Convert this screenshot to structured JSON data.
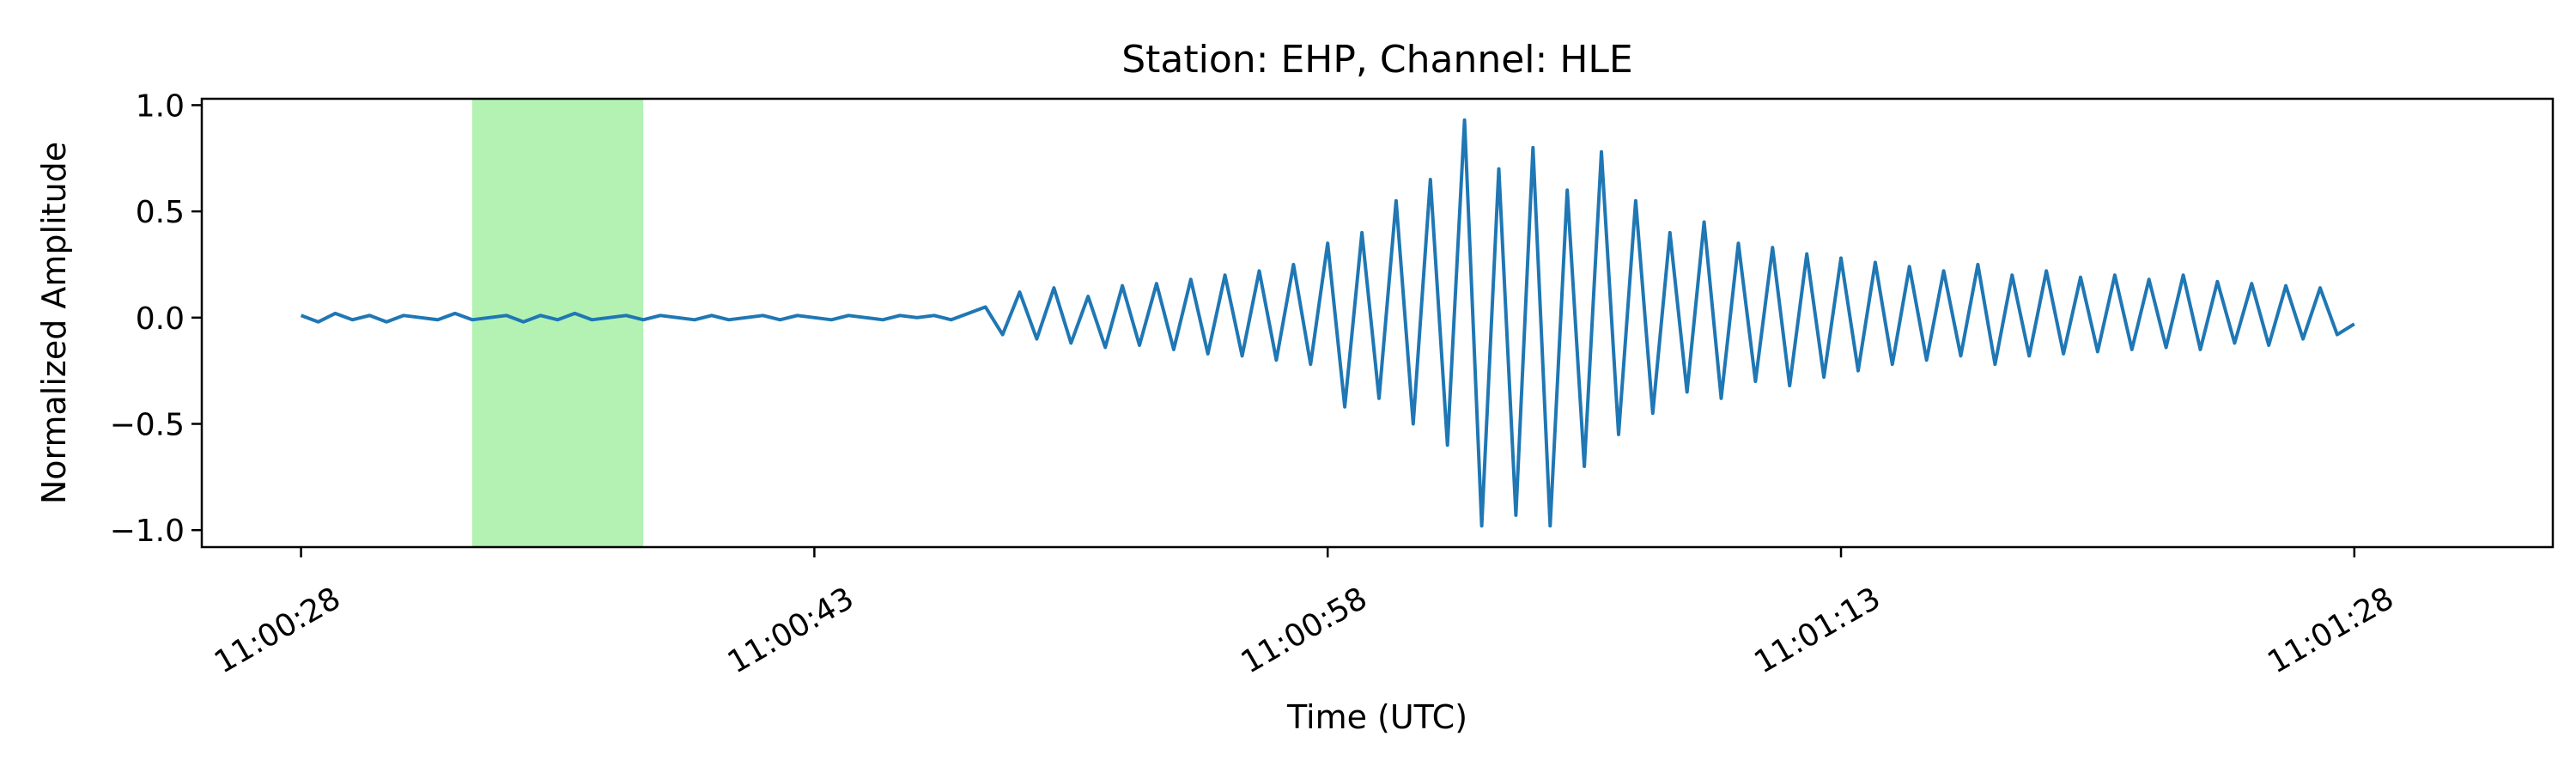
{
  "chart_data": {
    "type": "line",
    "title": "Station: EHP, Channel: HLE",
    "xlabel": "Time (UTC)",
    "ylabel": "Normalized Amplitude",
    "x_unit": "seconds",
    "xlim": [
      -2.9,
      65.8
    ],
    "ylim": [
      -1.08,
      1.03
    ],
    "xticks": [
      {
        "value": 0,
        "label": "11:00:28"
      },
      {
        "value": 15,
        "label": "11:00:43"
      },
      {
        "value": 30,
        "label": "11:00:58"
      },
      {
        "value": 45,
        "label": "11:01:13"
      },
      {
        "value": 60,
        "label": "11:01:28"
      }
    ],
    "yticks": [
      {
        "value": 1.0,
        "label": "1.0"
      },
      {
        "value": 0.5,
        "label": "0.5"
      },
      {
        "value": 0.0,
        "label": "0.0"
      },
      {
        "value": -0.5,
        "label": "−0.5"
      },
      {
        "value": -1.0,
        "label": "−1.0"
      }
    ],
    "highlight_span": {
      "x_start": 5.0,
      "x_end": 10.0,
      "color": "#b3f2b3"
    },
    "series": [
      {
        "color": "#1f77b4",
        "x": [
          0.0,
          0.5,
          1.0,
          1.5,
          2.0,
          2.5,
          3.0,
          3.5,
          4.0,
          4.5,
          5.0,
          5.5,
          6.0,
          6.5,
          7.0,
          7.5,
          8.0,
          8.5,
          9.0,
          9.5,
          10.0,
          10.5,
          11.0,
          11.5,
          12.0,
          12.5,
          13.0,
          13.5,
          14.0,
          14.5,
          15.0,
          15.5,
          16.0,
          16.5,
          17.0,
          17.5,
          18.0,
          18.5,
          19.0,
          19.5,
          20.0,
          20.5,
          21.0,
          21.5,
          22.0,
          22.5,
          23.0,
          23.5,
          24.0,
          24.5,
          25.0,
          25.5,
          26.0,
          26.5,
          27.0,
          27.5,
          28.0,
          28.5,
          29.0,
          29.5,
          30.0,
          30.5,
          31.0,
          31.5,
          32.0,
          32.5,
          33.0,
          33.5,
          34.0,
          34.5,
          35.0,
          35.5,
          36.0,
          36.5,
          37.0,
          37.5,
          38.0,
          38.5,
          39.0,
          39.5,
          40.0,
          40.5,
          41.0,
          41.5,
          42.0,
          42.5,
          43.0,
          43.5,
          44.0,
          44.5,
          45.0,
          45.5,
          46.0,
          46.5,
          47.0,
          47.5,
          48.0,
          48.5,
          49.0,
          49.5,
          50.0,
          50.5,
          51.0,
          51.5,
          52.0,
          52.5,
          53.0,
          53.5,
          54.0,
          54.5,
          55.0,
          55.5,
          56.0,
          56.5,
          57.0,
          57.5,
          58.0,
          58.5,
          59.0,
          59.5,
          60.0
        ],
        "values": [
          0.01,
          -0.02,
          0.02,
          -0.01,
          0.01,
          -0.02,
          0.01,
          0.0,
          -0.01,
          0.02,
          -0.01,
          0.0,
          0.01,
          -0.02,
          0.01,
          -0.01,
          0.02,
          -0.01,
          0.0,
          0.01,
          -0.01,
          0.01,
          0.0,
          -0.01,
          0.01,
          -0.01,
          0.0,
          0.01,
          -0.01,
          0.01,
          0.0,
          -0.01,
          0.01,
          0.0,
          -0.01,
          0.01,
          0.0,
          0.01,
          -0.01,
          0.02,
          0.05,
          -0.08,
          0.12,
          -0.1,
          0.14,
          -0.12,
          0.1,
          -0.14,
          0.15,
          -0.13,
          0.16,
          -0.15,
          0.18,
          -0.17,
          0.2,
          -0.18,
          0.22,
          -0.2,
          0.25,
          -0.22,
          0.35,
          -0.42,
          0.4,
          -0.38,
          0.55,
          -0.5,
          0.65,
          -0.6,
          0.93,
          -0.98,
          0.7,
          -0.93,
          0.8,
          -0.98,
          0.6,
          -0.7,
          0.78,
          -0.55,
          0.55,
          -0.45,
          0.4,
          -0.35,
          0.45,
          -0.38,
          0.35,
          -0.3,
          0.33,
          -0.32,
          0.3,
          -0.28,
          0.28,
          -0.25,
          0.26,
          -0.22,
          0.24,
          -0.2,
          0.22,
          -0.18,
          0.25,
          -0.22,
          0.2,
          -0.18,
          0.22,
          -0.17,
          0.19,
          -0.16,
          0.2,
          -0.15,
          0.18,
          -0.14,
          0.2,
          -0.15,
          0.17,
          -0.12,
          0.16,
          -0.13,
          0.15,
          -0.1,
          0.14,
          -0.08,
          -0.03
        ]
      }
    ]
  }
}
